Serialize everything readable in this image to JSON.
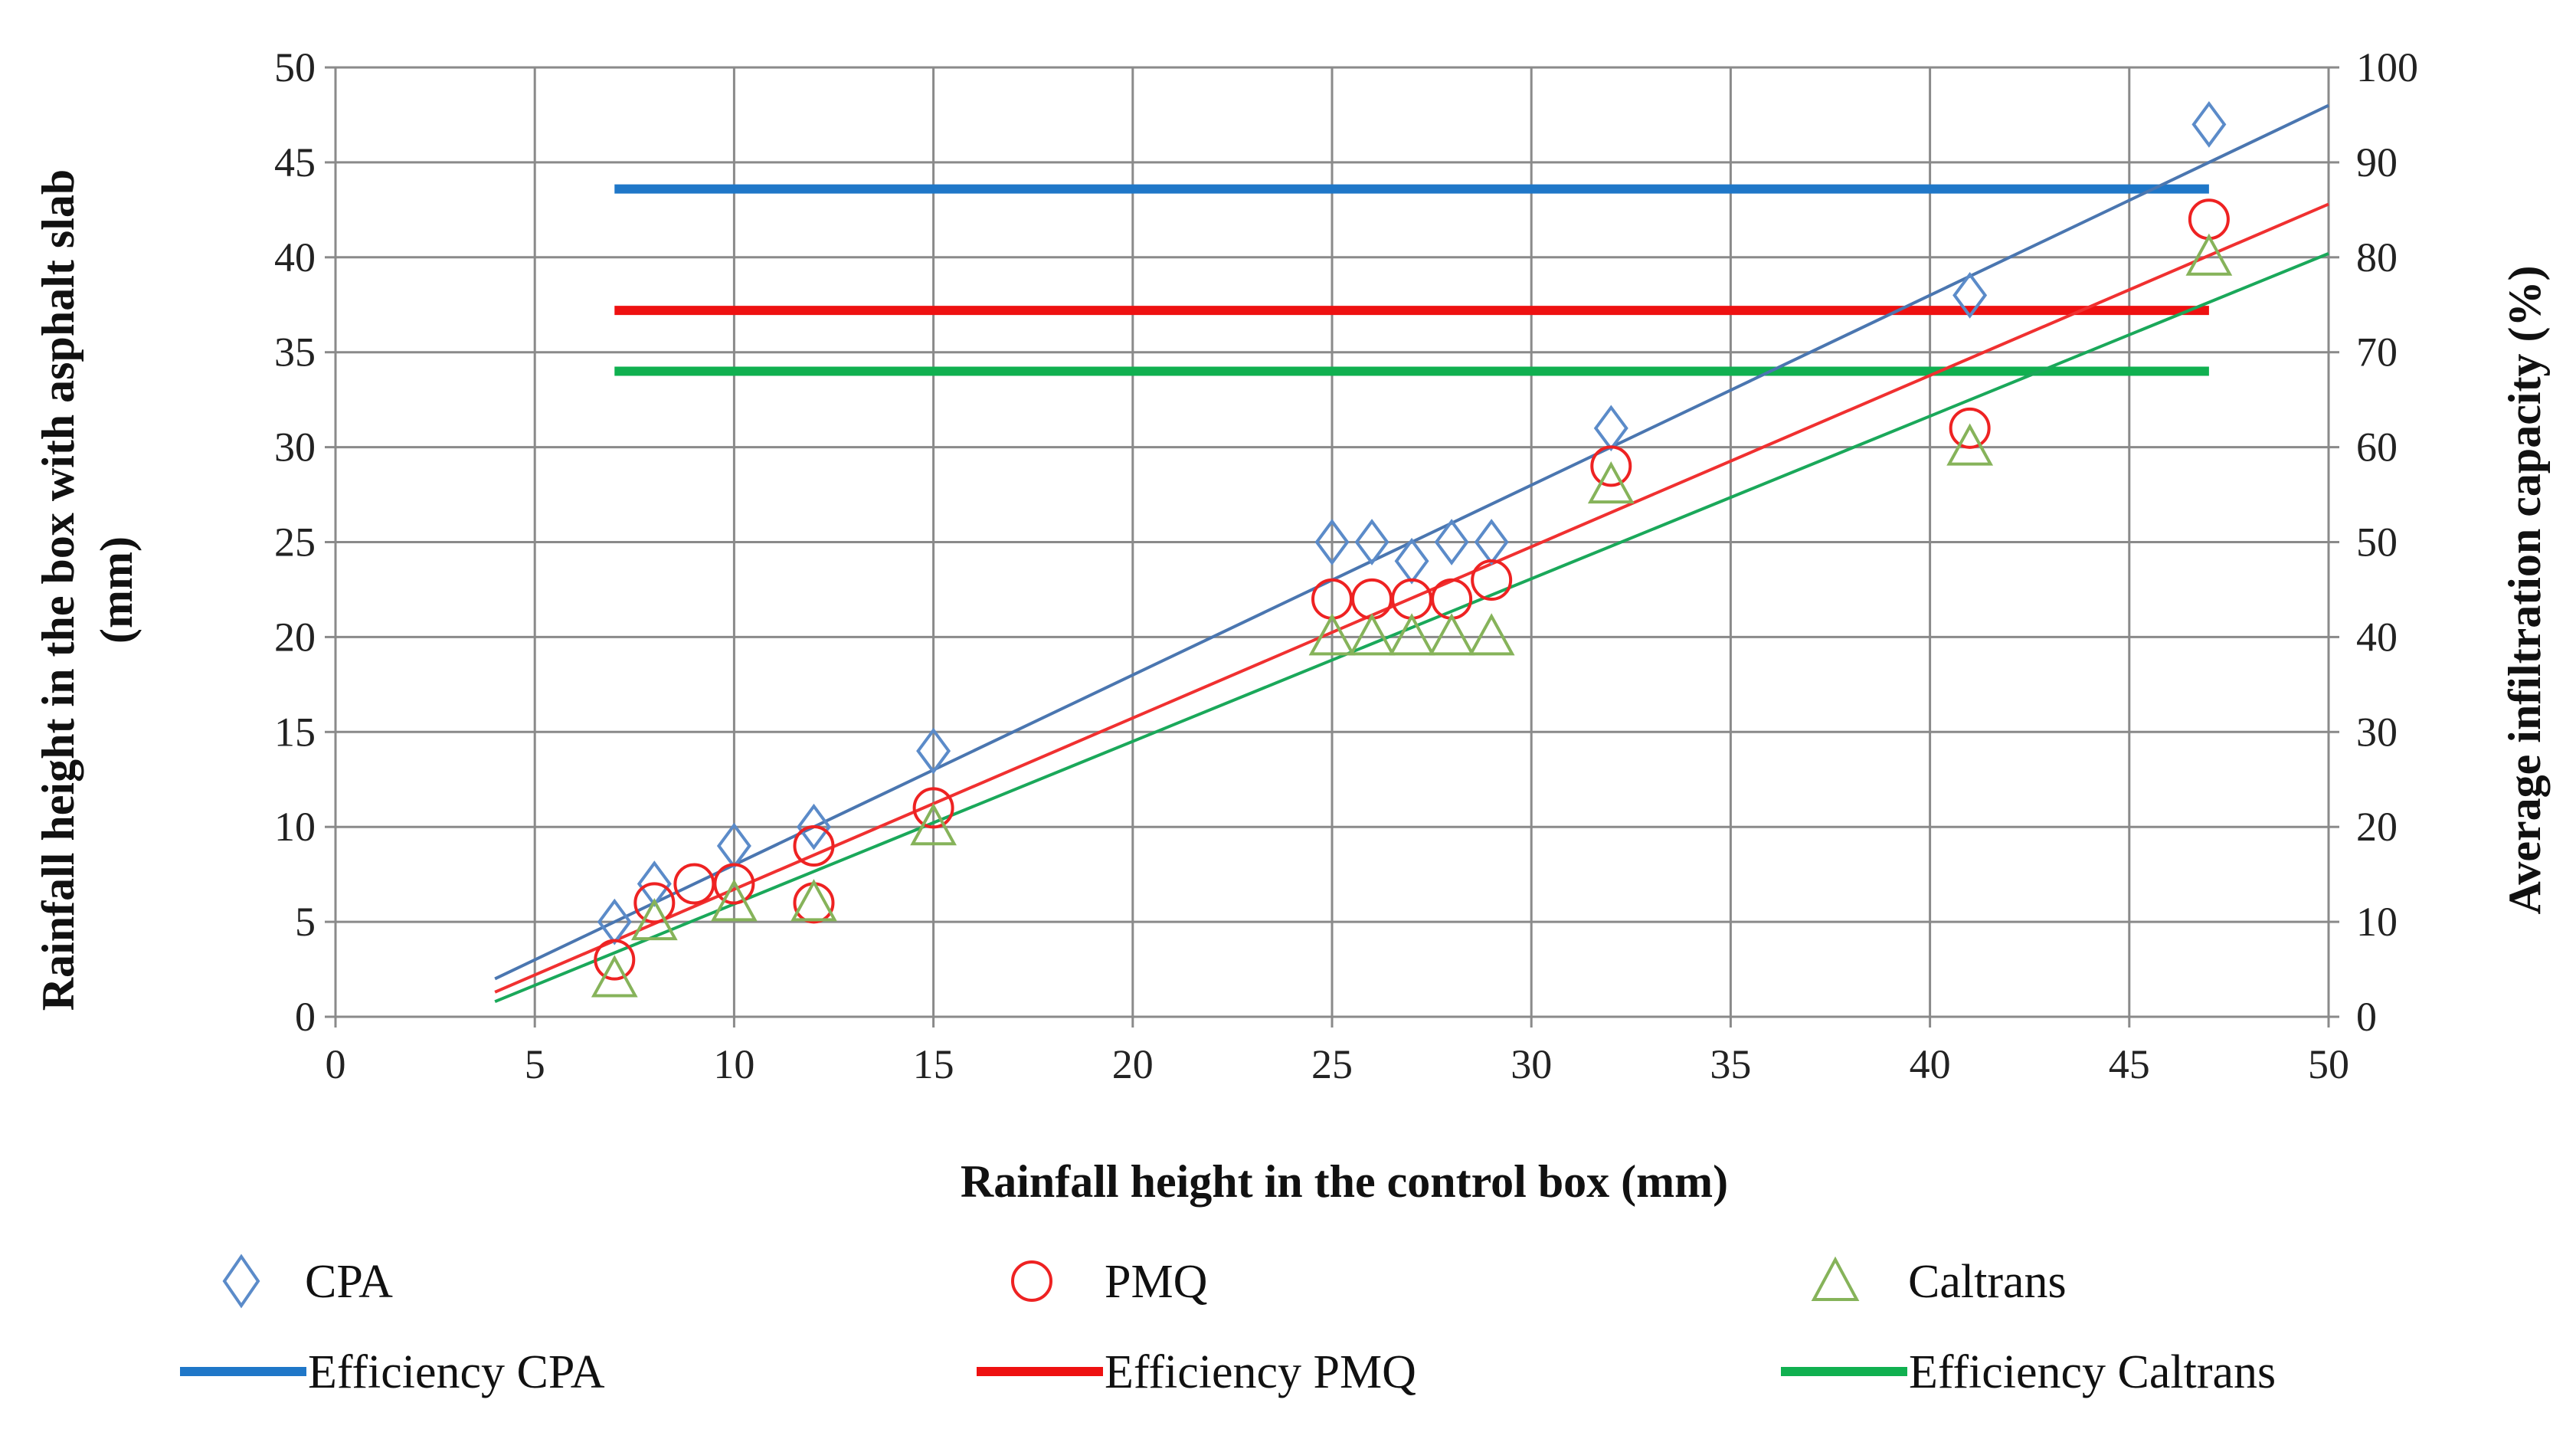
{
  "chart_data": {
    "type": "scatter",
    "title": "",
    "xlabel": "Rainfall height in the control box (mm)",
    "ylabel_left": [
      "Rainfall height in the box with asphalt slab",
      "(mm)"
    ],
    "ylabel_right": "Average infiltration capacity (%)",
    "xlim": [
      0,
      50
    ],
    "ylim_left": [
      0,
      50
    ],
    "ylim_right": [
      0,
      100
    ],
    "xticks": [
      "0",
      "5",
      "10",
      "15",
      "20",
      "25",
      "30",
      "35",
      "40",
      "45",
      "50"
    ],
    "yticks_left": [
      "0",
      "5",
      "10",
      "15",
      "20",
      "25",
      "30",
      "35",
      "40",
      "45",
      "50"
    ],
    "yticks_right": [
      "0",
      "10",
      "20",
      "30",
      "40",
      "50",
      "60",
      "70",
      "80",
      "90",
      "100"
    ],
    "grid": true,
    "legend_position": "bottom",
    "series": [
      {
        "name": "CPA",
        "marker": "diamond",
        "color": "#5b8bc9",
        "x": [
          7,
          8,
          10,
          12,
          15,
          25,
          26,
          27,
          28,
          29,
          32,
          41,
          47
        ],
        "y": [
          5,
          7,
          9,
          10,
          14,
          25,
          25,
          24,
          25,
          25,
          31,
          38,
          47
        ],
        "trend": {
          "x": [
            4,
            50
          ],
          "y": [
            2,
            48
          ],
          "color": "#4a76b0"
        }
      },
      {
        "name": "PMQ",
        "marker": "circle",
        "color": "#ee2222",
        "x": [
          7,
          8,
          9,
          10,
          12,
          12,
          15,
          25,
          26,
          27,
          28,
          29,
          32,
          41,
          47
        ],
        "y": [
          3,
          6,
          7,
          7,
          9,
          6,
          11,
          22,
          22,
          22,
          22,
          23,
          29,
          31,
          42
        ],
        "trend": {
          "x": [
            4,
            50
          ],
          "y": [
            1.3,
            42.8
          ],
          "color": "#f03030"
        }
      },
      {
        "name": "Caltrans",
        "marker": "triangle",
        "color": "#86b35a",
        "x": [
          7,
          8,
          10,
          12,
          15,
          25,
          26,
          27,
          28,
          29,
          32,
          41,
          47
        ],
        "y": [
          2,
          5,
          6,
          6,
          10,
          20,
          20,
          20,
          20,
          20,
          28,
          30,
          40
        ],
        "trend": {
          "x": [
            4,
            50
          ],
          "y": [
            0.8,
            40.2
          ],
          "color": "#1aa85a"
        }
      }
    ],
    "efficiency": [
      {
        "name": "Efficiency CPA",
        "x_start": 7,
        "x_end": 47,
        "value": 87.2,
        "color": "#1f77c8"
      },
      {
        "name": "Efficiency PMQ",
        "x_start": 7,
        "x_end": 47,
        "value": 74.4,
        "color": "#ee1111"
      },
      {
        "name": "Efficiency Caltrans",
        "x_start": 7,
        "x_end": 47,
        "value": 68.0,
        "color": "#10b050"
      }
    ],
    "legend": {
      "markers": [
        "CPA",
        "PMQ",
        "Caltrans"
      ],
      "lines": [
        "Efficiency CPA",
        "Efficiency PMQ",
        "Efficiency Caltrans"
      ]
    }
  }
}
